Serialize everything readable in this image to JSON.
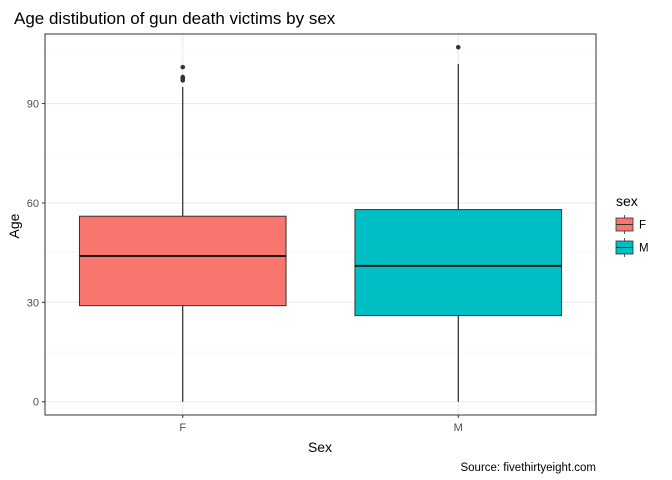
{
  "chart_data": {
    "type": "boxplot",
    "title": "Age distibution of gun death victims by sex",
    "xlabel": "Sex",
    "ylabel": "Age",
    "caption": "Source: fivethirtyeight.com",
    "categories": [
      "F",
      "M"
    ],
    "ylim": [
      -4,
      111
    ],
    "yticks": [
      0,
      30,
      60,
      90
    ],
    "grid": true,
    "legend": {
      "title": "sex",
      "position": "right",
      "entries": [
        "F",
        "M"
      ]
    },
    "series": [
      {
        "name": "F",
        "color": "#F8766D",
        "min": 0,
        "q1": 29,
        "median": 44,
        "q3": 56,
        "max": 95,
        "outliers": [
          97,
          97.5,
          98,
          101
        ]
      },
      {
        "name": "M",
        "color": "#00BFC4",
        "min": 0,
        "q1": 26,
        "median": 41,
        "q3": 58,
        "max": 102,
        "outliers": [
          107
        ]
      }
    ]
  }
}
